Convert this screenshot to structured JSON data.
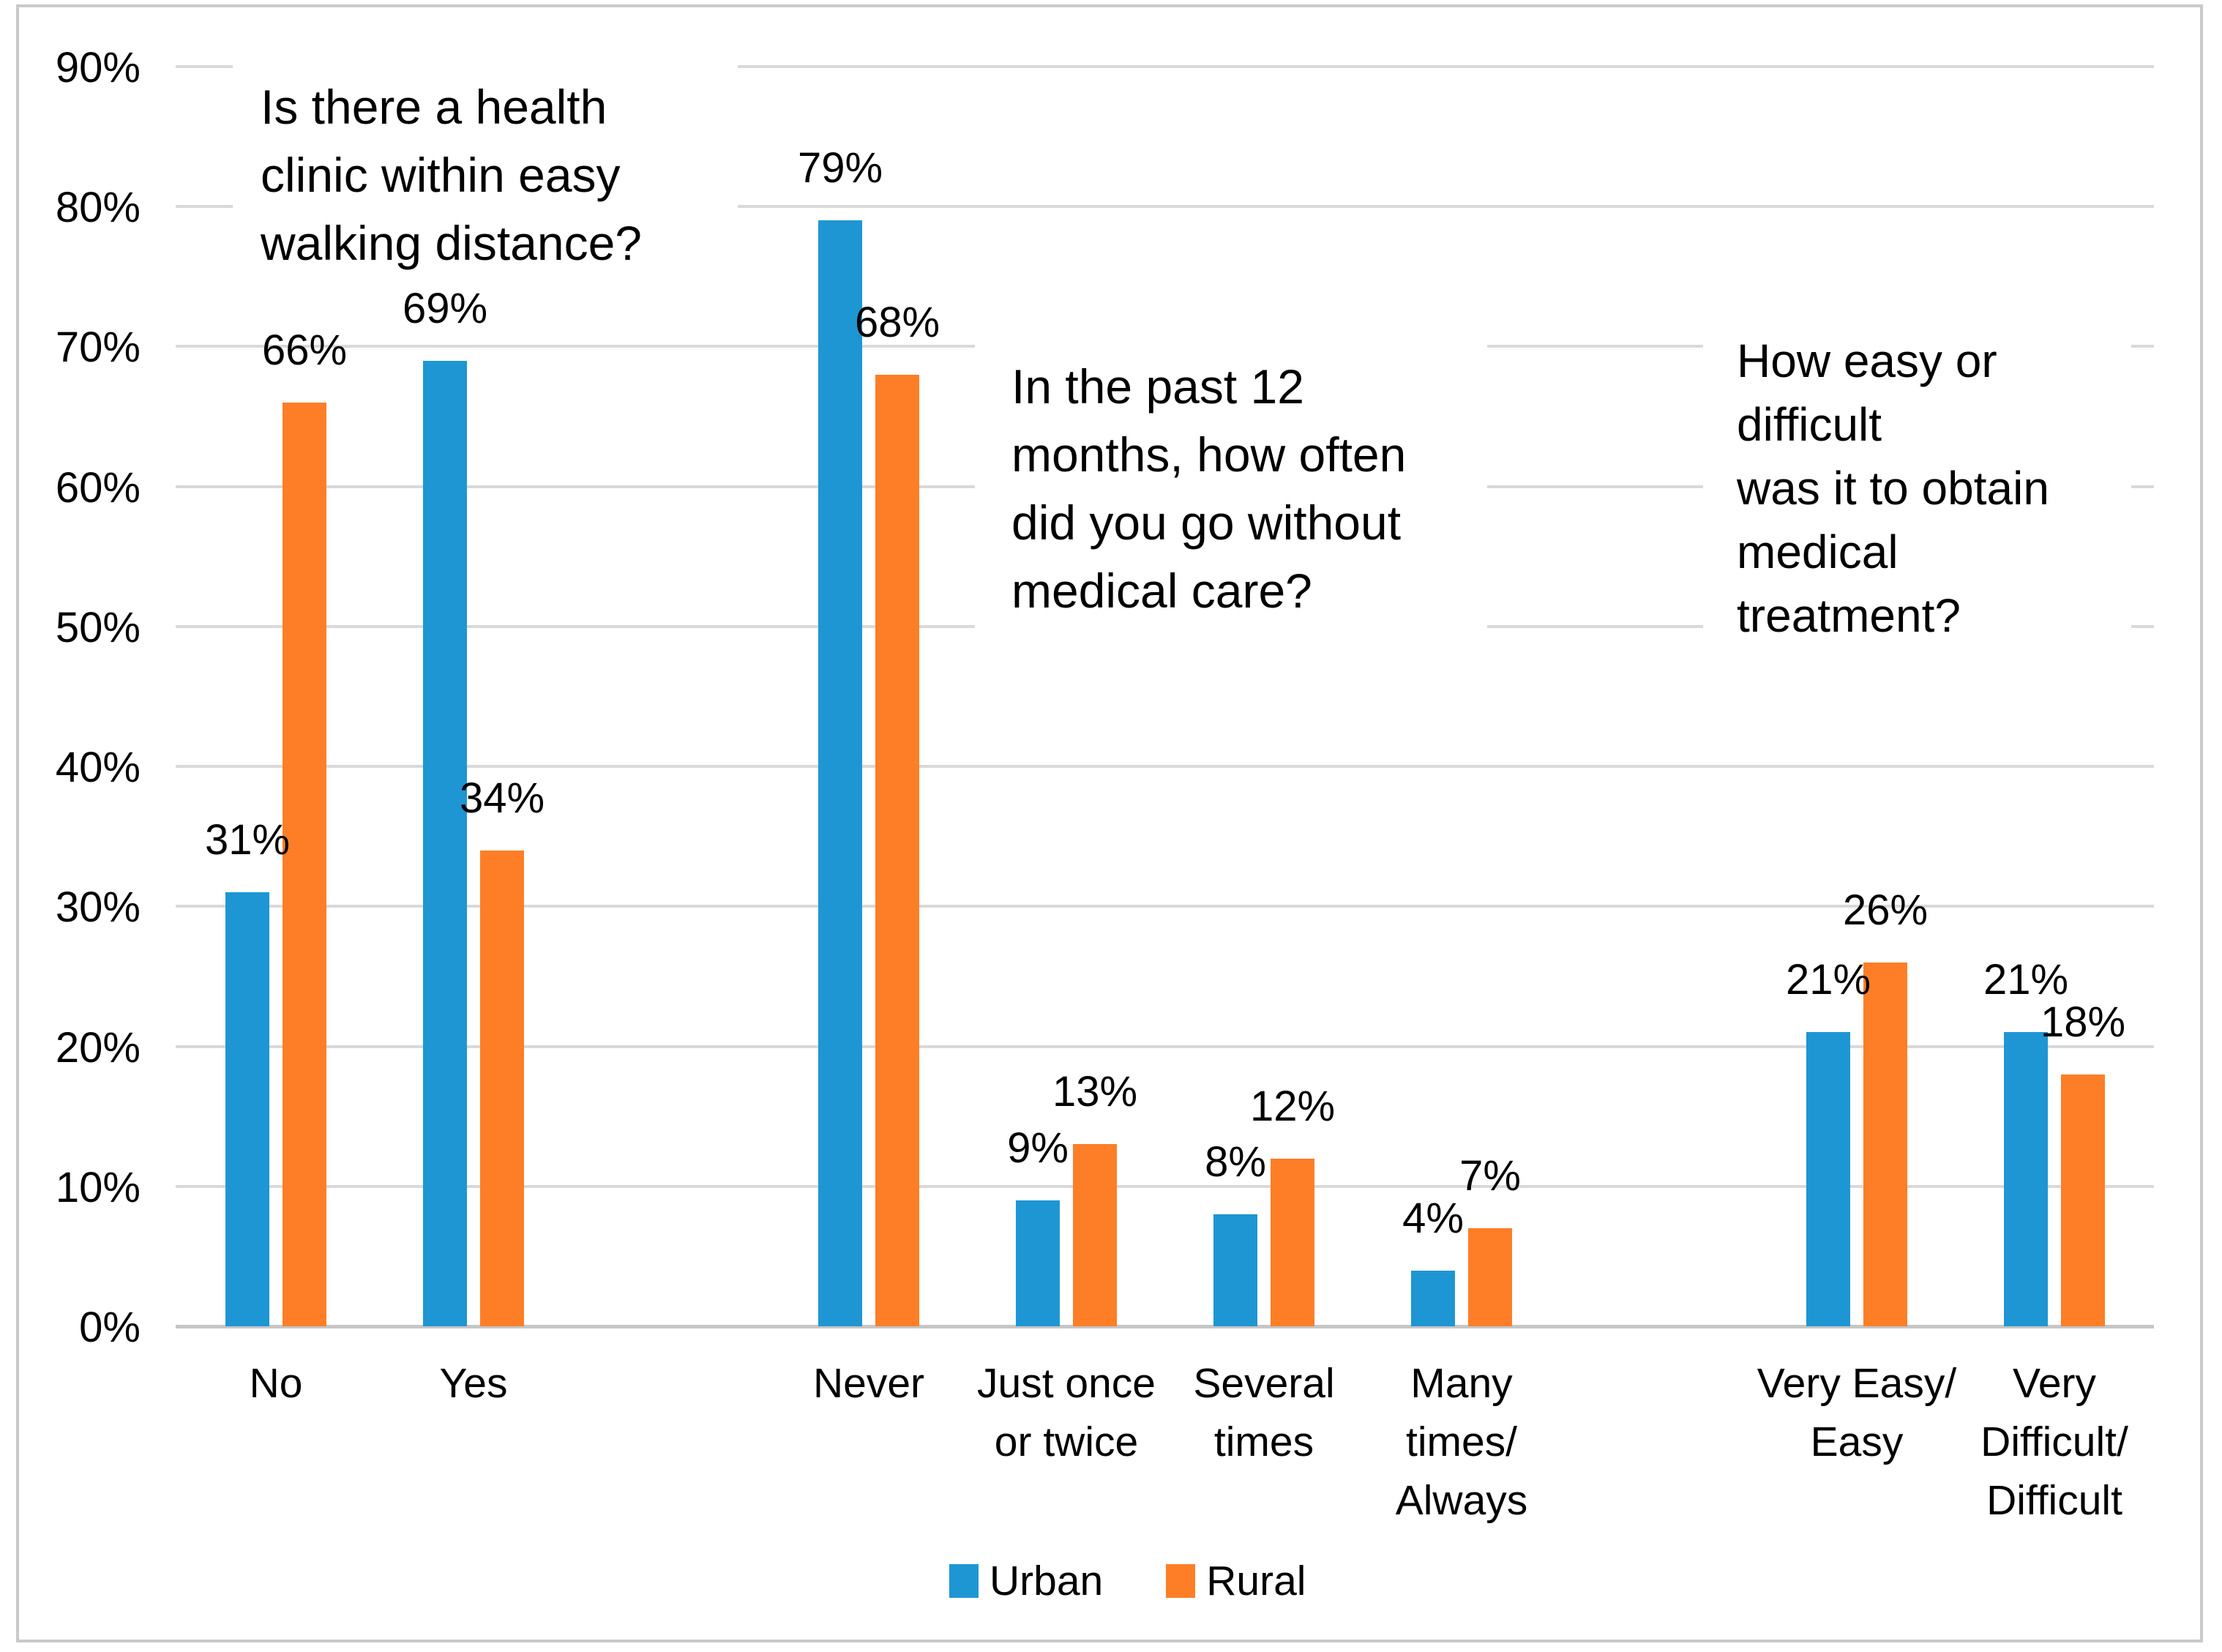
{
  "colors": {
    "urban": "#1e96d3",
    "rural": "#fd7e27",
    "gridline": "#d9d9d9",
    "zero_line": "#c6c6c6",
    "border": "#c9c9c9",
    "text": "#000000"
  },
  "chart_data": {
    "type": "bar",
    "title": "",
    "xlabel": "",
    "ylabel": "",
    "ylim": [
      0,
      90
    ],
    "grid": true,
    "legend_position": "bottom",
    "y_ticks": [
      "90%",
      "80%",
      "70%",
      "60%",
      "50%",
      "40%",
      "30%",
      "20%",
      "10%",
      "0%"
    ],
    "series_names": [
      "Urban",
      "Rural"
    ],
    "groups": [
      {
        "question": "Is there a health clinic within easy walking distance?",
        "question_lines": [
          "Is there a health",
          "clinic within easy",
          "walking distance?"
        ],
        "categories": [
          {
            "label_lines": [
              "No"
            ],
            "values": {
              "Urban": 31,
              "Rural": 66
            }
          },
          {
            "label_lines": [
              "Yes"
            ],
            "values": {
              "Urban": 69,
              "Rural": 34
            }
          }
        ]
      },
      {
        "question": "In the past 12 months, how often did you go without medical care?",
        "question_lines": [
          "In the past 12",
          "months, how often",
          "did you go without",
          "medical care?"
        ],
        "categories": [
          {
            "label_lines": [
              "Never"
            ],
            "values": {
              "Urban": 79,
              "Rural": 68
            }
          },
          {
            "label_lines": [
              "Just once",
              "or twice"
            ],
            "values": {
              "Urban": 9,
              "Rural": 13
            }
          },
          {
            "label_lines": [
              "Several",
              "times"
            ],
            "values": {
              "Urban": 8,
              "Rural": 12
            }
          },
          {
            "label_lines": [
              "Many",
              "times/",
              "Always"
            ],
            "values": {
              "Urban": 4,
              "Rural": 7
            }
          }
        ]
      },
      {
        "question": "How easy or difficult was it to obtain medical treatment?",
        "question_lines": [
          "How easy or",
          "difficult",
          "was it to obtain",
          "medical",
          "treatment?"
        ],
        "categories": [
          {
            "label_lines": [
              "Very Easy/",
              "Easy"
            ],
            "values": {
              "Urban": 21,
              "Rural": 26
            }
          },
          {
            "label_lines": [
              "Very",
              "Difficult/",
              "Difficult"
            ],
            "values": {
              "Urban": 21,
              "Rural": 18
            }
          }
        ]
      }
    ]
  }
}
